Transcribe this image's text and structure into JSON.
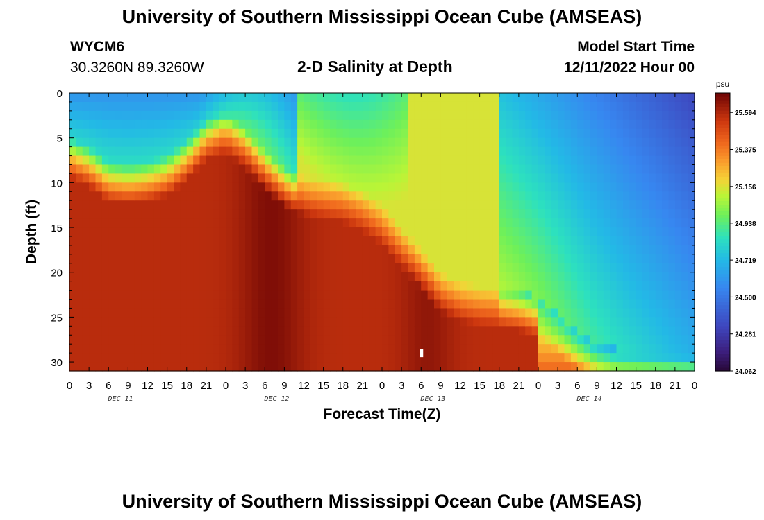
{
  "header": {
    "title": "University of Southern Mississippi Ocean Cube (AMSEAS)",
    "station": "WYCM6",
    "coords": "30.3260N  89.3260W",
    "subtitle": "2-D Salinity at Depth",
    "start_label": "Model Start Time",
    "start_value": "12/11/2022 Hour 00"
  },
  "footer": {
    "title": "University of Southern Mississippi Ocean Cube (AMSEAS)"
  },
  "chart_data": {
    "type": "heatmap",
    "title": "2-D Salinity at Depth",
    "xlabel": "Forecast Time(Z)",
    "ylabel": "Depth (ft)",
    "x_tick_labels": [
      "0",
      "3",
      "6",
      "9",
      "12",
      "15",
      "18",
      "21",
      "0",
      "3",
      "6",
      "9",
      "12",
      "15",
      "18",
      "21",
      "0",
      "3",
      "6",
      "9",
      "12",
      "15",
      "18",
      "21",
      "0",
      "3",
      "6",
      "9",
      "12",
      "15",
      "18",
      "21",
      "0"
    ],
    "date_labels": [
      "DEC 11",
      "DEC 12",
      "DEC 13",
      "DEC 14"
    ],
    "xlim_hours": [
      0,
      96
    ],
    "ylim_ft": [
      0,
      31
    ],
    "y_ticks": [
      0,
      5,
      10,
      15,
      20,
      25,
      30
    ],
    "y_tick_labels": [
      "0",
      "5",
      "10",
      "15",
      "20",
      "25",
      "30"
    ],
    "colorbar": {
      "unit": "psu",
      "min": 24.062,
      "max": 25.71,
      "tick_values": [
        24.062,
        24.281,
        24.5,
        24.719,
        24.938,
        25.156,
        25.375,
        25.594
      ],
      "tick_labels": [
        "24.062",
        "24.281",
        "24.500",
        "24.719",
        "24.938",
        "25.156",
        "25.375",
        "25.594"
      ]
    },
    "interface_depth_ft": [
      [
        0,
        7.5
      ],
      [
        3,
        8.5
      ],
      [
        6,
        10.2
      ],
      [
        9,
        10.5
      ],
      [
        12,
        10.2
      ],
      [
        15,
        9.5
      ],
      [
        18,
        7.8
      ],
      [
        21,
        5.5
      ],
      [
        24,
        4.8
      ],
      [
        27,
        6.5
      ],
      [
        30,
        9.0
      ],
      [
        33,
        10.8
      ],
      [
        36,
        11.8
      ],
      [
        39,
        12.2
      ],
      [
        42,
        12.5
      ],
      [
        45,
        13.5
      ],
      [
        48,
        15.0
      ],
      [
        51,
        17.5
      ],
      [
        54,
        20.0
      ],
      [
        57,
        22.5
      ],
      [
        60,
        23.5
      ],
      [
        63,
        24.0
      ],
      [
        66,
        24.2
      ],
      [
        69,
        24.5
      ],
      [
        72,
        25.2
      ],
      [
        75,
        27.0
      ],
      [
        78,
        29.0
      ],
      [
        81,
        30.5
      ],
      [
        84,
        31.0
      ],
      [
        87,
        31.0
      ],
      [
        90,
        31.0
      ],
      [
        93,
        31.0
      ],
      [
        96,
        31.0
      ]
    ],
    "marker": {
      "hour": 54,
      "depth_ft": 29
    }
  }
}
